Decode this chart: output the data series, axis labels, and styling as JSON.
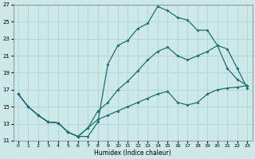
{
  "xlabel": "Humidex (Indice chaleur)",
  "bg_color": "#cde8e8",
  "grid_color": "#aed4d4",
  "line_color": "#1a7070",
  "xlim": [
    -0.5,
    23.5
  ],
  "ylim": [
    11,
    27
  ],
  "xticks": [
    0,
    1,
    2,
    3,
    4,
    5,
    6,
    7,
    8,
    9,
    10,
    11,
    12,
    13,
    14,
    15,
    16,
    17,
    18,
    19,
    20,
    21,
    22,
    23
  ],
  "yticks": [
    11,
    13,
    15,
    17,
    19,
    21,
    23,
    25,
    27
  ],
  "line1_x": [
    0,
    1,
    2,
    3,
    4,
    5,
    6,
    7,
    8,
    9,
    10,
    11,
    12,
    13,
    14,
    15,
    16,
    17,
    18,
    19,
    20,
    21,
    22,
    23
  ],
  "line1_y": [
    16.5,
    15.0,
    14.0,
    13.2,
    13.1,
    12.0,
    11.5,
    11.5,
    13.2,
    20.0,
    22.2,
    22.8,
    24.2,
    24.8,
    26.8,
    26.3,
    25.5,
    25.2,
    24.0,
    24.0,
    22.2,
    19.5,
    18.2,
    17.5
  ],
  "line2_x": [
    0,
    1,
    2,
    3,
    4,
    5,
    6,
    7,
    8,
    9,
    10,
    11,
    12,
    13,
    14,
    15,
    16,
    17,
    18,
    19,
    20,
    21,
    22,
    23
  ],
  "line2_y": [
    16.5,
    15.0,
    14.0,
    13.2,
    13.1,
    12.0,
    11.5,
    12.5,
    14.5,
    15.5,
    17.0,
    18.0,
    19.2,
    20.5,
    21.5,
    22.0,
    21.0,
    20.5,
    21.0,
    21.5,
    22.2,
    21.8,
    19.5,
    17.2
  ],
  "line3_x": [
    0,
    1,
    2,
    3,
    4,
    5,
    6,
    7,
    8,
    9,
    10,
    11,
    12,
    13,
    14,
    15,
    16,
    17,
    18,
    19,
    20,
    21,
    22,
    23
  ],
  "line3_y": [
    16.5,
    15.0,
    14.0,
    13.2,
    13.1,
    12.0,
    11.5,
    12.5,
    13.5,
    14.0,
    14.5,
    15.0,
    15.5,
    16.0,
    16.5,
    16.8,
    15.5,
    15.2,
    15.5,
    16.5,
    17.0,
    17.2,
    17.3,
    17.5
  ]
}
